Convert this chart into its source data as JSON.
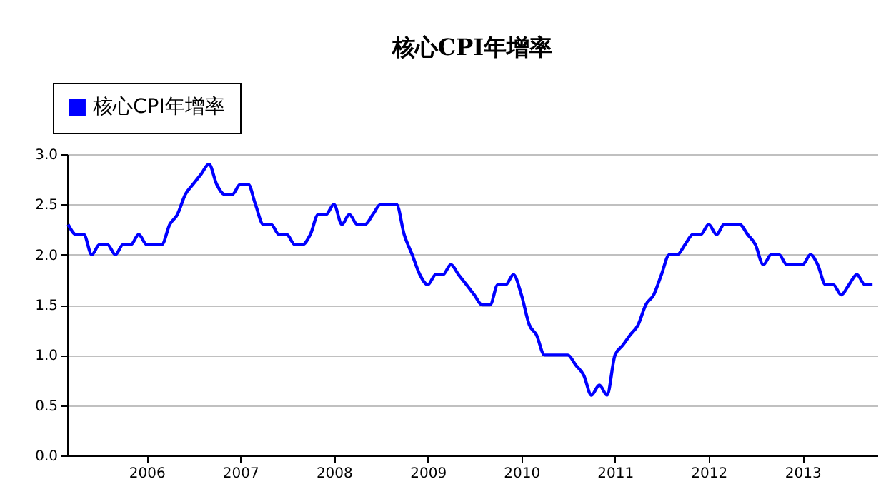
{
  "chart_data": {
    "type": "line",
    "title": "核心CPI年增率",
    "x": [
      "2005-03",
      "2005-04",
      "2005-05",
      "2005-06",
      "2005-07",
      "2005-08",
      "2005-09",
      "2005-10",
      "2005-11",
      "2005-12",
      "2006-01",
      "2006-02",
      "2006-03",
      "2006-04",
      "2006-05",
      "2006-06",
      "2006-07",
      "2006-08",
      "2006-09",
      "2006-10",
      "2006-11",
      "2006-12",
      "2007-01",
      "2007-02",
      "2007-03",
      "2007-04",
      "2007-05",
      "2007-06",
      "2007-07",
      "2007-08",
      "2007-09",
      "2007-10",
      "2007-11",
      "2007-12",
      "2008-01",
      "2008-02",
      "2008-03",
      "2008-04",
      "2008-05",
      "2008-06",
      "2008-07",
      "2008-08",
      "2008-09",
      "2008-10",
      "2008-11",
      "2008-12",
      "2009-01",
      "2009-02",
      "2009-03",
      "2009-04",
      "2009-05",
      "2009-06",
      "2009-07",
      "2009-08",
      "2009-09",
      "2009-10",
      "2009-11",
      "2009-12",
      "2010-01",
      "2010-02",
      "2010-03",
      "2010-04",
      "2010-05",
      "2010-06",
      "2010-07",
      "2010-08",
      "2010-09",
      "2010-10",
      "2010-11",
      "2010-12",
      "2011-01",
      "2011-02",
      "2011-03",
      "2011-04",
      "2011-05",
      "2011-06",
      "2011-07",
      "2011-08",
      "2011-09",
      "2011-10",
      "2011-11",
      "2011-12",
      "2012-01",
      "2012-02",
      "2012-03",
      "2012-04",
      "2012-05",
      "2012-06",
      "2012-07",
      "2012-08",
      "2012-09",
      "2012-10",
      "2012-11",
      "2012-12",
      "2013-01",
      "2013-02",
      "2013-03",
      "2013-04",
      "2013-05",
      "2013-06",
      "2013-07",
      "2013-08",
      "2013-09",
      "2013-10"
    ],
    "series": [
      {
        "name": "核心CPI年增率",
        "color": "#0000ff",
        "values": [
          2.3,
          2.2,
          2.2,
          2.0,
          2.1,
          2.1,
          2.0,
          2.1,
          2.1,
          2.2,
          2.1,
          2.1,
          2.1,
          2.3,
          2.4,
          2.6,
          2.7,
          2.8,
          2.9,
          2.7,
          2.6,
          2.6,
          2.7,
          2.7,
          2.5,
          2.3,
          2.3,
          2.2,
          2.2,
          2.1,
          2.1,
          2.2,
          2.4,
          2.4,
          2.5,
          2.3,
          2.4,
          2.3,
          2.3,
          2.4,
          2.5,
          2.5,
          2.5,
          2.2,
          2.0,
          1.8,
          1.7,
          1.8,
          1.8,
          1.9,
          1.8,
          1.7,
          1.6,
          1.5,
          1.5,
          1.7,
          1.7,
          1.8,
          1.6,
          1.3,
          1.2,
          1.0,
          1.0,
          1.0,
          1.0,
          0.9,
          0.8,
          0.6,
          0.7,
          0.6,
          1.0,
          1.1,
          1.2,
          1.3,
          1.5,
          1.6,
          1.8,
          2.0,
          2.0,
          2.1,
          2.2,
          2.2,
          2.3,
          2.2,
          2.3,
          2.3,
          2.3,
          2.2,
          2.1,
          1.9,
          2.0,
          2.0,
          1.9,
          1.9,
          1.9,
          2.0,
          1.9,
          1.7,
          1.7,
          1.6,
          1.7,
          1.8,
          1.7,
          1.7
        ]
      }
    ],
    "xlim": [
      "2005-02-25",
      "2013-10-20"
    ],
    "xticks": [
      "2006",
      "2007",
      "2008",
      "2009",
      "2010",
      "2011",
      "2012",
      "2013"
    ],
    "ylim": [
      0,
      3
    ],
    "yticks": [
      {
        "value": 0,
        "label": "0.0"
      },
      {
        "value": 0.5,
        "label": "0.5"
      },
      {
        "value": 1,
        "label": "1.0"
      },
      {
        "value": 1.5,
        "label": "1.5"
      },
      {
        "value": 2,
        "label": "2.0"
      },
      {
        "value": 2.5,
        "label": "2.5"
      },
      {
        "value": 3,
        "label": "3.0"
      }
    ],
    "grid": "y",
    "legend": "top left",
    "marker": "none",
    "line_style": "solid"
  }
}
